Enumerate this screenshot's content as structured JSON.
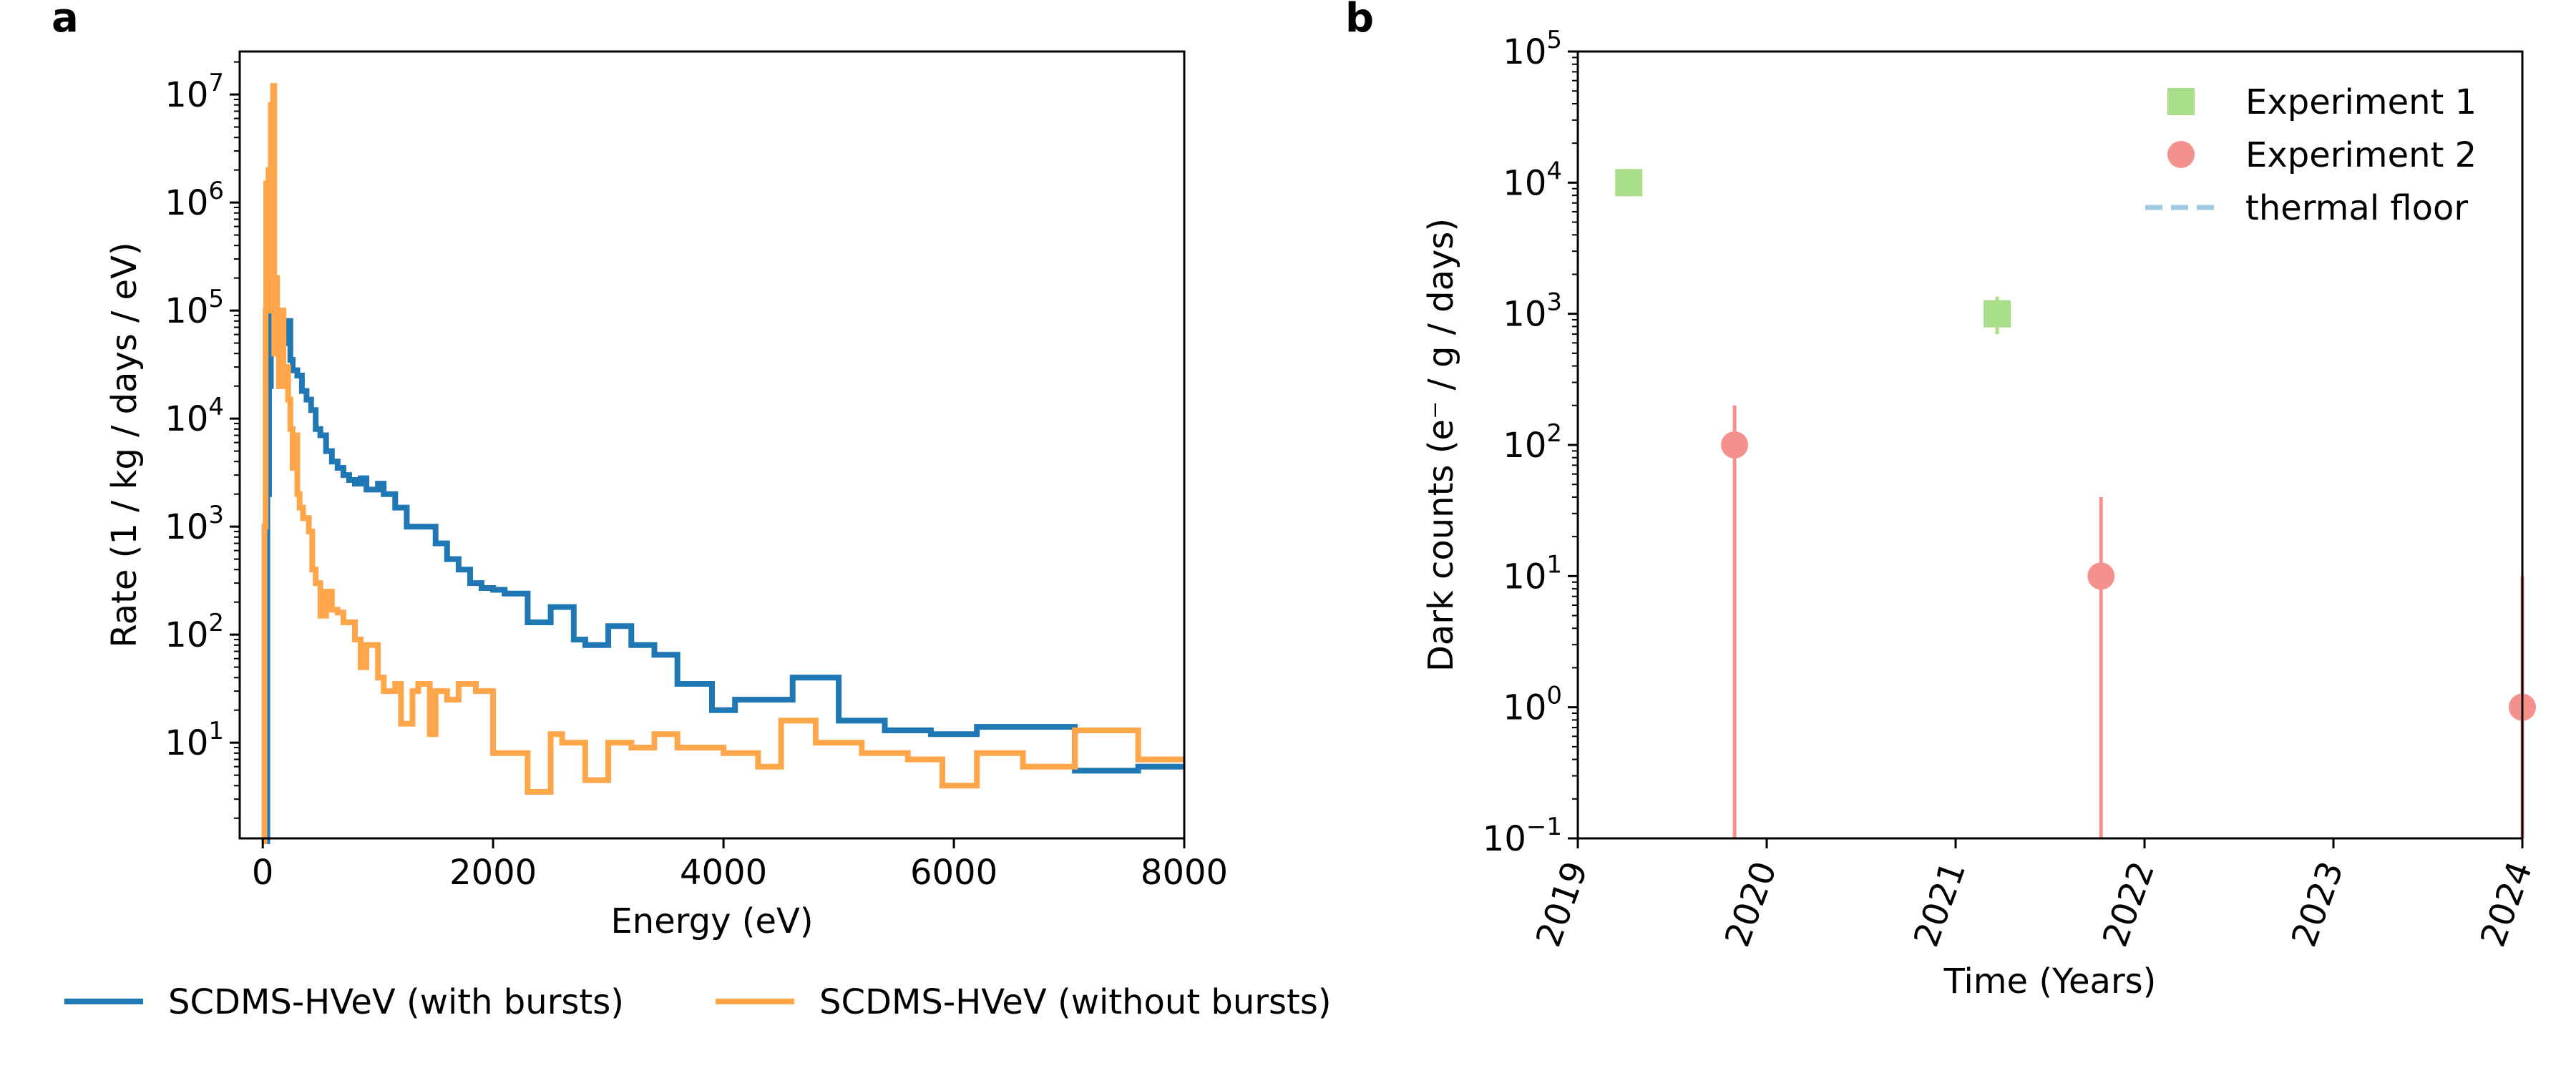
{
  "panels": {
    "a": {
      "label": "a",
      "chart_data": {
        "type": "line",
        "style": "step",
        "xlabel": "Energy (eV)",
        "ylabel": "Rate (1 / kg / days / eV)",
        "xlim": [
          -200,
          8000
        ],
        "ylim": [
          1.3,
          25000000
        ],
        "yscale": "log",
        "grid": false,
        "legend_position": "below",
        "x_ticks": [
          0,
          2000,
          4000,
          6000,
          8000
        ],
        "x_tick_labels": [
          "0",
          "2000",
          "4000",
          "6000",
          "8000"
        ],
        "y_ticks": [
          10,
          100,
          1000,
          10000,
          100000,
          1000000,
          10000000
        ],
        "y_tick_labels": [
          {
            "base": "10",
            "exp": "1"
          },
          {
            "base": "10",
            "exp": "2"
          },
          {
            "base": "10",
            "exp": "3"
          },
          {
            "base": "10",
            "exp": "4"
          },
          {
            "base": "10",
            "exp": "5"
          },
          {
            "base": "10",
            "exp": "6"
          },
          {
            "base": "10",
            "exp": "7"
          }
        ],
        "series": [
          {
            "name": "SCDMS-HVeV (with bursts)",
            "color": "#1f77b4",
            "points": [
              [
                0,
                1.0
              ],
              [
                40,
                1.0
              ],
              [
                40,
                2000
              ],
              [
                55,
                20000
              ],
              [
                70,
                150000
              ],
              [
                80,
                400000
              ],
              [
                90,
                200000
              ],
              [
                100,
                120000
              ],
              [
                115,
                80000
              ],
              [
                130,
                60000
              ],
              [
                145,
                45000
              ],
              [
                160,
                75000
              ],
              [
                175,
                55000
              ],
              [
                190,
                70000
              ],
              [
                205,
                50000
              ],
              [
                220,
                80000
              ],
              [
                240,
                35000
              ],
              [
                260,
                28000
              ],
              [
                300,
                25000
              ],
              [
                340,
                18000
              ],
              [
                380,
                15000
              ],
              [
                420,
                12000
              ],
              [
                460,
                8000
              ],
              [
                500,
                7000
              ],
              [
                550,
                5000
              ],
              [
                600,
                4000
              ],
              [
                650,
                3500
              ],
              [
                700,
                3000
              ],
              [
                750,
                2700
              ],
              [
                800,
                2500
              ],
              [
                850,
                2800
              ],
              [
                900,
                2200
              ],
              [
                1000,
                2500
              ],
              [
                1050,
                2000
              ],
              [
                1150,
                1500
              ],
              [
                1250,
                1000
              ],
              [
                1350,
                1000
              ],
              [
                1500,
                700
              ],
              [
                1600,
                500
              ],
              [
                1700,
                400
              ],
              [
                1800,
                300
              ],
              [
                1900,
                270
              ],
              [
                2000,
                260
              ],
              [
                2100,
                240
              ],
              [
                2300,
                130
              ],
              [
                2500,
                180
              ],
              [
                2700,
                90
              ],
              [
                2800,
                80
              ],
              [
                3000,
                120
              ],
              [
                3200,
                80
              ],
              [
                3400,
                65
              ],
              [
                3600,
                35
              ],
              [
                3900,
                20
              ],
              [
                4100,
                25
              ],
              [
                4400,
                25
              ],
              [
                4600,
                40
              ],
              [
                5000,
                16
              ],
              [
                5400,
                13
              ],
              [
                5800,
                12
              ],
              [
                6200,
                14
              ],
              [
                7000,
                14
              ],
              [
                7050,
                5.5
              ],
              [
                7600,
                6.0
              ],
              [
                8000,
                6.0
              ]
            ]
          },
          {
            "name": "SCDMS-HVeV (without bursts)",
            "color": "#ffa54a",
            "points": [
              [
                0,
                1.0
              ],
              [
                15,
                1.0
              ],
              [
                15,
                1000
              ],
              [
                25,
                100000
              ],
              [
                30,
                1500000
              ],
              [
                40,
                200000
              ],
              [
                50,
                2000000
              ],
              [
                60,
                300000
              ],
              [
                70,
                8000000
              ],
              [
                80,
                100000
              ],
              [
                90,
                12000000
              ],
              [
                100,
                40000
              ],
              [
                115,
                200000
              ],
              [
                125,
                50000
              ],
              [
                140,
                20000
              ],
              [
                160,
                100000
              ],
              [
                180,
                20000
              ],
              [
                200,
                30000
              ],
              [
                220,
                15000
              ],
              [
                240,
                8000
              ],
              [
                260,
                3500
              ],
              [
                280,
                7000
              ],
              [
                300,
                2000
              ],
              [
                320,
                1500
              ],
              [
                350,
                1200
              ],
              [
                400,
                900
              ],
              [
                430,
                400
              ],
              [
                460,
                300
              ],
              [
                500,
                150
              ],
              [
                550,
                250
              ],
              [
                600,
                170
              ],
              [
                650,
                160
              ],
              [
                700,
                130
              ],
              [
                800,
                90
              ],
              [
                850,
                50
              ],
              [
                900,
                80
              ],
              [
                1000,
                40
              ],
              [
                1050,
                30
              ],
              [
                1150,
                35
              ],
              [
                1200,
                15
              ],
              [
                1300,
                30
              ],
              [
                1350,
                35
              ],
              [
                1450,
                12
              ],
              [
                1500,
                30
              ],
              [
                1600,
                25
              ],
              [
                1700,
                35
              ],
              [
                1850,
                30
              ],
              [
                2000,
                8
              ],
              [
                2200,
                8
              ],
              [
                2300,
                3.5
              ],
              [
                2500,
                12
              ],
              [
                2600,
                10
              ],
              [
                2800,
                4.5
              ],
              [
                3000,
                10
              ],
              [
                3200,
                9
              ],
              [
                3400,
                12
              ],
              [
                3600,
                9
              ],
              [
                4000,
                8
              ],
              [
                4300,
                6
              ],
              [
                4500,
                16
              ],
              [
                4800,
                10
              ],
              [
                5200,
                8
              ],
              [
                5600,
                7
              ],
              [
                5900,
                4
              ],
              [
                6200,
                8
              ],
              [
                6600,
                6
              ],
              [
                7000,
                6
              ],
              [
                7050,
                13
              ],
              [
                7600,
                7
              ],
              [
                8000,
                7
              ]
            ]
          }
        ]
      }
    },
    "b": {
      "label": "b",
      "chart_data": {
        "type": "scatter",
        "xlabel": "Time (Years)",
        "ylabel": "Dark counts (e⁻ / g / days)",
        "xlim": [
          2019,
          2024
        ],
        "ylim": [
          0.1,
          100000
        ],
        "yscale": "log",
        "grid": false,
        "legend_position": "top-right",
        "x_ticks": [
          2019,
          2020,
          2021,
          2022,
          2023,
          2024
        ],
        "x_tick_labels": [
          "2019",
          "2020",
          "2021",
          "2022",
          "2023",
          "2024"
        ],
        "y_ticks": [
          0.1,
          1,
          10,
          100,
          1000,
          10000,
          100000
        ],
        "y_tick_labels": [
          {
            "base": "10",
            "exp": "−1"
          },
          {
            "base": "10",
            "exp": "0"
          },
          {
            "base": "10",
            "exp": "1"
          },
          {
            "base": "10",
            "exp": "2"
          },
          {
            "base": "10",
            "exp": "3"
          },
          {
            "base": "10",
            "exp": "4"
          },
          {
            "base": "10",
            "exp": "5"
          }
        ],
        "series": [
          {
            "name": "Experiment 1",
            "marker": "square",
            "color": "#a8dd8a",
            "points": [
              {
                "x": 2019.27,
                "y": 10000,
                "err_low": 10000,
                "err_high": 10000
              },
              {
                "x": 2021.22,
                "y": 1000,
                "err_low": 700,
                "err_high": 1350
              }
            ]
          },
          {
            "name": "Experiment 2",
            "marker": "circle",
            "color": "#f4908e",
            "points": [
              {
                "x": 2019.83,
                "y": 100,
                "err_low": 0.1,
                "err_high": 200
              },
              {
                "x": 2021.77,
                "y": 10,
                "err_low": 0.1,
                "err_high": 40
              },
              {
                "x": 2024.0,
                "y": 1,
                "err_low": 0.1,
                "err_high": 10
              }
            ]
          },
          {
            "name": "thermal floor",
            "marker": "dashed-line",
            "color": "#9ecae1",
            "points": []
          }
        ]
      }
    }
  }
}
